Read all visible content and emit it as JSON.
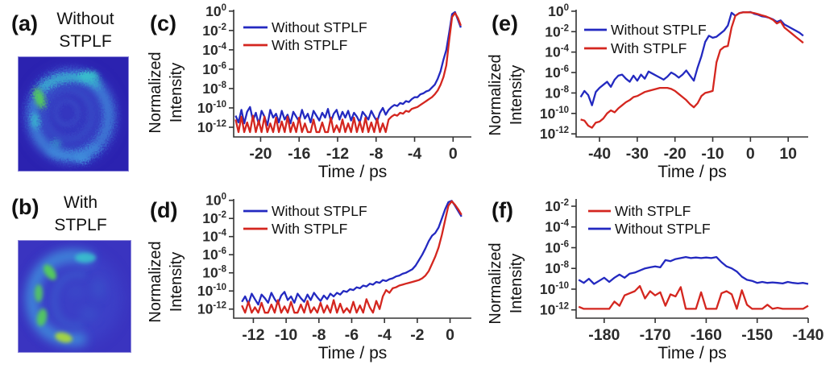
{
  "colors": {
    "without_stplf_line": "#2329c0",
    "with_stplf_line": "#d4261f",
    "axis": "#333333",
    "tick_text": "#2b2b2b",
    "label_text": "#111111",
    "background": "#ffffff",
    "image_bg_a": "#2b22b0",
    "image_bg_b": "#3a34c0",
    "image_border": "#8e88da",
    "image_glow": "#3d46cc",
    "image_ring": "#3f8fdc",
    "image_inner": "#3a5ccd",
    "image_bright_teal": "#38c4cc",
    "image_bright_green": "#55cf58",
    "image_bright_yellow": "#a8d83e"
  },
  "image_panels": [
    {
      "id": "a",
      "label": "(a)",
      "title_line1": "Without",
      "title_line2": "STPLF",
      "description": "speckle beam image without STPLF"
    },
    {
      "id": "b",
      "label": "(b)",
      "title_line1": "With",
      "title_line2": "STPLF",
      "description": "speckle beam image with STPLF"
    }
  ],
  "chart_data": [
    {
      "id": "c",
      "panel_label": "(c)",
      "type": "line",
      "y_scale": "log10",
      "xlabel": "Time / ps",
      "ylabel": "Normalized Intensity",
      "ylabel_line1": "Normalized",
      "ylabel_line2": "Intensity",
      "xlim": [
        -22.8,
        1.9
      ],
      "ylim_log10": [
        -13.0,
        0.15
      ],
      "xticks": [
        -20,
        -16,
        -12,
        -8,
        -4,
        0
      ],
      "ytick_exponents": [
        0,
        -2,
        -4,
        -6,
        -8,
        -10,
        -12
      ],
      "legend": [
        {
          "label": "Without STPLF",
          "color_key": "without_stplf_line"
        },
        {
          "label": "With STPLF",
          "color_key": "with_stplf_line"
        }
      ],
      "series": [
        {
          "name": "Without STPLF",
          "color_key": "without_stplf_line",
          "x0": -22.6,
          "dx": 0.3,
          "log10_values": [
            -10.8,
            -11.5,
            -10.2,
            -11.6,
            -10.4,
            -9.9,
            -11.3,
            -10.5,
            -11.7,
            -10.3,
            -10.9,
            -11.8,
            -10.2,
            -11.0,
            -10.6,
            -11.5,
            -10.3,
            -11.2,
            -10.7,
            -11.6,
            -10.4,
            -10.9,
            -11.4,
            -10.2,
            -11.1,
            -10.6,
            -11.5,
            -10.3,
            -10.8,
            -11.3,
            -10.5,
            -11.0,
            -10.1,
            -11.4,
            -10.6,
            -10.2,
            -11.2,
            -10.4,
            -11.0,
            -10.3,
            -11.3,
            -10.5,
            -10.9,
            -11.5,
            -10.4,
            -10.8,
            -11.2,
            -10.3,
            -10.9,
            -11.4,
            -10.5,
            -10.0,
            -10.7,
            -10.2,
            -9.9,
            -9.7,
            -9.8,
            -9.5,
            -9.6,
            -9.3,
            -9.4,
            -9.1,
            -8.9,
            -8.9,
            -8.6,
            -8.5,
            -8.3,
            -8.2,
            -7.9,
            -7.6,
            -7.0,
            -6.2,
            -5.0,
            -4.0,
            -2.2,
            -0.3,
            -0.1,
            -0.9,
            -1.7
          ]
        },
        {
          "name": "With STPLF",
          "color_key": "with_stplf_line",
          "x0": -22.6,
          "dx": 0.3,
          "log10_values": [
            -11.2,
            -12.5,
            -10.9,
            -12.5,
            -11.5,
            -12.5,
            -10.8,
            -12.5,
            -11.3,
            -12.5,
            -10.9,
            -12.5,
            -11.6,
            -12.5,
            -11.0,
            -12.5,
            -11.4,
            -12.5,
            -10.9,
            -12.5,
            -11.5,
            -12.5,
            -11.0,
            -12.5,
            -11.6,
            -12.5,
            -12.5,
            -11.2,
            -12.5,
            -12.5,
            -11.5,
            -12.5,
            -12.5,
            -11.0,
            -12.5,
            -11.8,
            -12.5,
            -11.2,
            -12.5,
            -11.6,
            -12.5,
            -11.0,
            -12.5,
            -11.4,
            -12.5,
            -11.0,
            -12.5,
            -11.5,
            -12.5,
            -11.1,
            -12.5,
            -11.6,
            -12.5,
            -11.2,
            -10.9,
            -10.7,
            -10.8,
            -10.5,
            -10.6,
            -10.3,
            -10.4,
            -10.1,
            -10.0,
            -9.9,
            -9.7,
            -9.5,
            -9.3,
            -9.1,
            -8.9,
            -8.6,
            -8.2,
            -7.6,
            -6.8,
            -5.6,
            -3.0,
            -0.6,
            -0.2,
            -0.7,
            -1.5
          ]
        }
      ]
    },
    {
      "id": "d",
      "panel_label": "(d)",
      "type": "line",
      "y_scale": "log10",
      "xlabel": "Time / ps",
      "ylabel": "Normalized Intensity",
      "ylabel_line1": "Normalized",
      "ylabel_line2": "Intensity",
      "xlim": [
        -13.2,
        1.3
      ],
      "ylim_log10": [
        -13.0,
        0.15
      ],
      "xticks": [
        -12,
        -10,
        -8,
        -6,
        -4,
        -2,
        0
      ],
      "ytick_exponents": [
        0,
        -2,
        -4,
        -6,
        -8,
        -10,
        -12
      ],
      "legend": [
        {
          "label": "Without STPLF",
          "color_key": "without_stplf_line"
        },
        {
          "label": "With STPLF",
          "color_key": "with_stplf_line"
        }
      ],
      "series": [
        {
          "name": "Without STPLF",
          "color_key": "without_stplf_line",
          "x0": -12.7,
          "dx": 0.2,
          "log10_values": [
            -11.2,
            -10.6,
            -11.4,
            -10.3,
            -10.9,
            -11.5,
            -10.4,
            -10.8,
            -11.3,
            -10.2,
            -10.9,
            -11.4,
            -10.5,
            -10.1,
            -11.0,
            -10.6,
            -11.3,
            -10.3,
            -10.8,
            -11.2,
            -10.4,
            -11.0,
            -10.2,
            -10.7,
            -11.1,
            -10.5,
            -10.9,
            -10.3,
            -10.6,
            -10.2,
            -10.4,
            -10.0,
            -10.1,
            -9.8,
            -9.9,
            -9.6,
            -9.7,
            -9.4,
            -9.5,
            -9.2,
            -9.3,
            -9.0,
            -9.1,
            -8.8,
            -8.9,
            -8.7,
            -8.6,
            -8.4,
            -8.3,
            -8.1,
            -8.0,
            -7.8,
            -7.6,
            -7.2,
            -6.6,
            -6.0,
            -5.3,
            -4.5,
            -3.9,
            -3.6,
            -3.0,
            -2.0,
            -1.0,
            -0.2,
            -0.05,
            -0.6,
            -1.2,
            -1.8
          ]
        },
        {
          "name": "With STPLF",
          "color_key": "with_stplf_line",
          "x0": -12.7,
          "dx": 0.2,
          "log10_values": [
            -11.6,
            -12.4,
            -11.2,
            -12.4,
            -11.8,
            -12.4,
            -11.3,
            -12.4,
            -12.4,
            -11.5,
            -12.4,
            -11.0,
            -12.4,
            -11.7,
            -12.4,
            -11.2,
            -12.4,
            -12.4,
            -11.5,
            -12.4,
            -11.1,
            -12.4,
            -11.8,
            -12.4,
            -11.3,
            -12.4,
            -11.6,
            -12.4,
            -11.0,
            -12.4,
            -11.4,
            -12.4,
            -11.9,
            -12.4,
            -11.2,
            -12.4,
            -11.6,
            -12.4,
            -10.9,
            -11.8,
            -12.4,
            -11.1,
            -12.0,
            -10.6,
            -9.9,
            -10.2,
            -9.7,
            -9.6,
            -9.4,
            -9.3,
            -9.2,
            -9.1,
            -9.0,
            -8.9,
            -8.8,
            -8.6,
            -8.3,
            -7.8,
            -7.0,
            -6.2,
            -5.2,
            -3.8,
            -2.2,
            -0.6,
            -0.1,
            -0.5,
            -1.0,
            -1.6
          ]
        }
      ]
    },
    {
      "id": "e",
      "panel_label": "(e)",
      "type": "line",
      "y_scale": "log10",
      "xlabel": "Time / ps",
      "ylabel": "Normalized Intensity",
      "ylabel_line1": "Normalized",
      "ylabel_line2": "Intensity",
      "xlim": [
        -46.2,
        15.3
      ],
      "ylim_log10": [
        -12.3,
        0.15
      ],
      "xticks": [
        -40,
        -30,
        -20,
        -10,
        0,
        10
      ],
      "ytick_exponents": [
        0,
        -2,
        -4,
        -6,
        -8,
        -10,
        -12
      ],
      "legend": [
        {
          "label": "Without STPLF",
          "color_key": "without_stplf_line"
        },
        {
          "label": "With STPLF",
          "color_key": "with_stplf_line"
        }
      ],
      "series": [
        {
          "name": "Without STPLF",
          "color_key": "without_stplf_line",
          "x0": -45,
          "dx": 1,
          "log10_values": [
            -8.4,
            -7.8,
            -8.2,
            -9.2,
            -7.9,
            -7.5,
            -7.2,
            -6.9,
            -7.4,
            -6.7,
            -6.3,
            -6.2,
            -6.6,
            -6.9,
            -6.3,
            -6.8,
            -6.2,
            -6.6,
            -5.9,
            -6.1,
            -6.3,
            -6.5,
            -6.7,
            -6.4,
            -6.0,
            -6.2,
            -6.5,
            -6.2,
            -5.8,
            -6.3,
            -6.8,
            -5.5,
            -4.4,
            -3.0,
            -2.4,
            -2.6,
            -2.5,
            -2.2,
            -1.9,
            -1.4,
            -0.15,
            -0.45,
            -0.2,
            -0.1,
            -0.12,
            -0.08,
            -0.25,
            -0.35,
            -0.5,
            -0.55,
            -0.65,
            -0.8,
            -1.05,
            -0.9,
            -1.3,
            -1.5,
            -1.7,
            -1.9,
            -2.1,
            -2.4
          ]
        },
        {
          "name": "With STPLF",
          "color_key": "with_stplf_line",
          "x0": -45,
          "dx": 1,
          "log10_values": [
            -10.6,
            -10.7,
            -11.2,
            -11.4,
            -10.9,
            -10.8,
            -10.5,
            -10.0,
            -9.7,
            -9.9,
            -9.5,
            -9.2,
            -8.9,
            -8.7,
            -8.4,
            -8.3,
            -8.1,
            -7.9,
            -7.8,
            -7.7,
            -7.6,
            -7.5,
            -7.5,
            -7.5,
            -7.6,
            -7.8,
            -8.1,
            -8.4,
            -8.7,
            -9.1,
            -9.4,
            -9.0,
            -8.3,
            -8.0,
            -7.9,
            -7.8,
            -5.0,
            -3.8,
            -3.5,
            -3.4,
            -1.6,
            -0.45,
            -0.2,
            -0.12,
            -0.1,
            -0.12,
            -0.18,
            -0.28,
            -0.4,
            -0.5,
            -0.65,
            -0.85,
            -1.2,
            -1.0,
            -1.6,
            -1.9,
            -2.2,
            -2.5,
            -2.8,
            -3.1
          ]
        }
      ]
    },
    {
      "id": "f",
      "panel_label": "(f)",
      "type": "line",
      "y_scale": "log10",
      "xlabel": "Time / ps",
      "ylabel": "Normalized Intensity",
      "ylabel_line1": "Normalized",
      "ylabel_line2": "Intensity",
      "xlim": [
        -185.5,
        -140
      ],
      "ylim_log10": [
        -12.8,
        -1.3
      ],
      "xticks": [
        -180,
        -170,
        -160,
        -150,
        -140
      ],
      "ytick_exponents": [
        -2,
        -4,
        -6,
        -8,
        -10,
        -12
      ],
      "legend": [
        {
          "label": "With STPLF",
          "color_key": "with_stplf_line"
        },
        {
          "label": "Without STPLF",
          "color_key": "without_stplf_line"
        }
      ],
      "series": [
        {
          "name": "Without STPLF",
          "color_key": "without_stplf_line",
          "x0": -185,
          "dx": 1,
          "log10_values": [
            -9.1,
            -9.4,
            -9.0,
            -9.5,
            -9.2,
            -8.9,
            -9.3,
            -8.9,
            -8.6,
            -8.9,
            -8.5,
            -8.4,
            -8.2,
            -8.0,
            -7.9,
            -7.8,
            -7.9,
            -7.2,
            -7.3,
            -7.1,
            -7.0,
            -6.9,
            -7.0,
            -6.95,
            -7.0,
            -6.95,
            -7.0,
            -6.9,
            -7.4,
            -7.8,
            -8.0,
            -8.3,
            -8.8,
            -9.1,
            -9.2,
            -9.4,
            -9.3,
            -9.4,
            -9.35,
            -9.4,
            -9.45,
            -9.3,
            -9.4,
            -9.45,
            -9.4,
            -9.5
          ]
        },
        {
          "name": "With STPLF",
          "color_key": "with_stplf_line",
          "x0": -185,
          "dx": 1,
          "log10_values": [
            -11.7,
            -11.9,
            -11.9,
            -11.9,
            -11.9,
            -11.9,
            -11.9,
            -11.2,
            -11.6,
            -10.6,
            -10.4,
            -10.2,
            -9.7,
            -10.9,
            -10.2,
            -10.6,
            -10.3,
            -11.6,
            -10.5,
            -10.7,
            -9.8,
            -11.9,
            -11.9,
            -11.9,
            -10.3,
            -11.9,
            -11.9,
            -11.9,
            -10.4,
            -10.2,
            -10.5,
            -11.9,
            -10.1,
            -11.5,
            -11.9,
            -11.9,
            -11.9,
            -11.5,
            -11.9,
            -11.8,
            -11.9,
            -11.9,
            -11.9,
            -11.9,
            -11.9,
            -11.6
          ]
        }
      ]
    }
  ]
}
